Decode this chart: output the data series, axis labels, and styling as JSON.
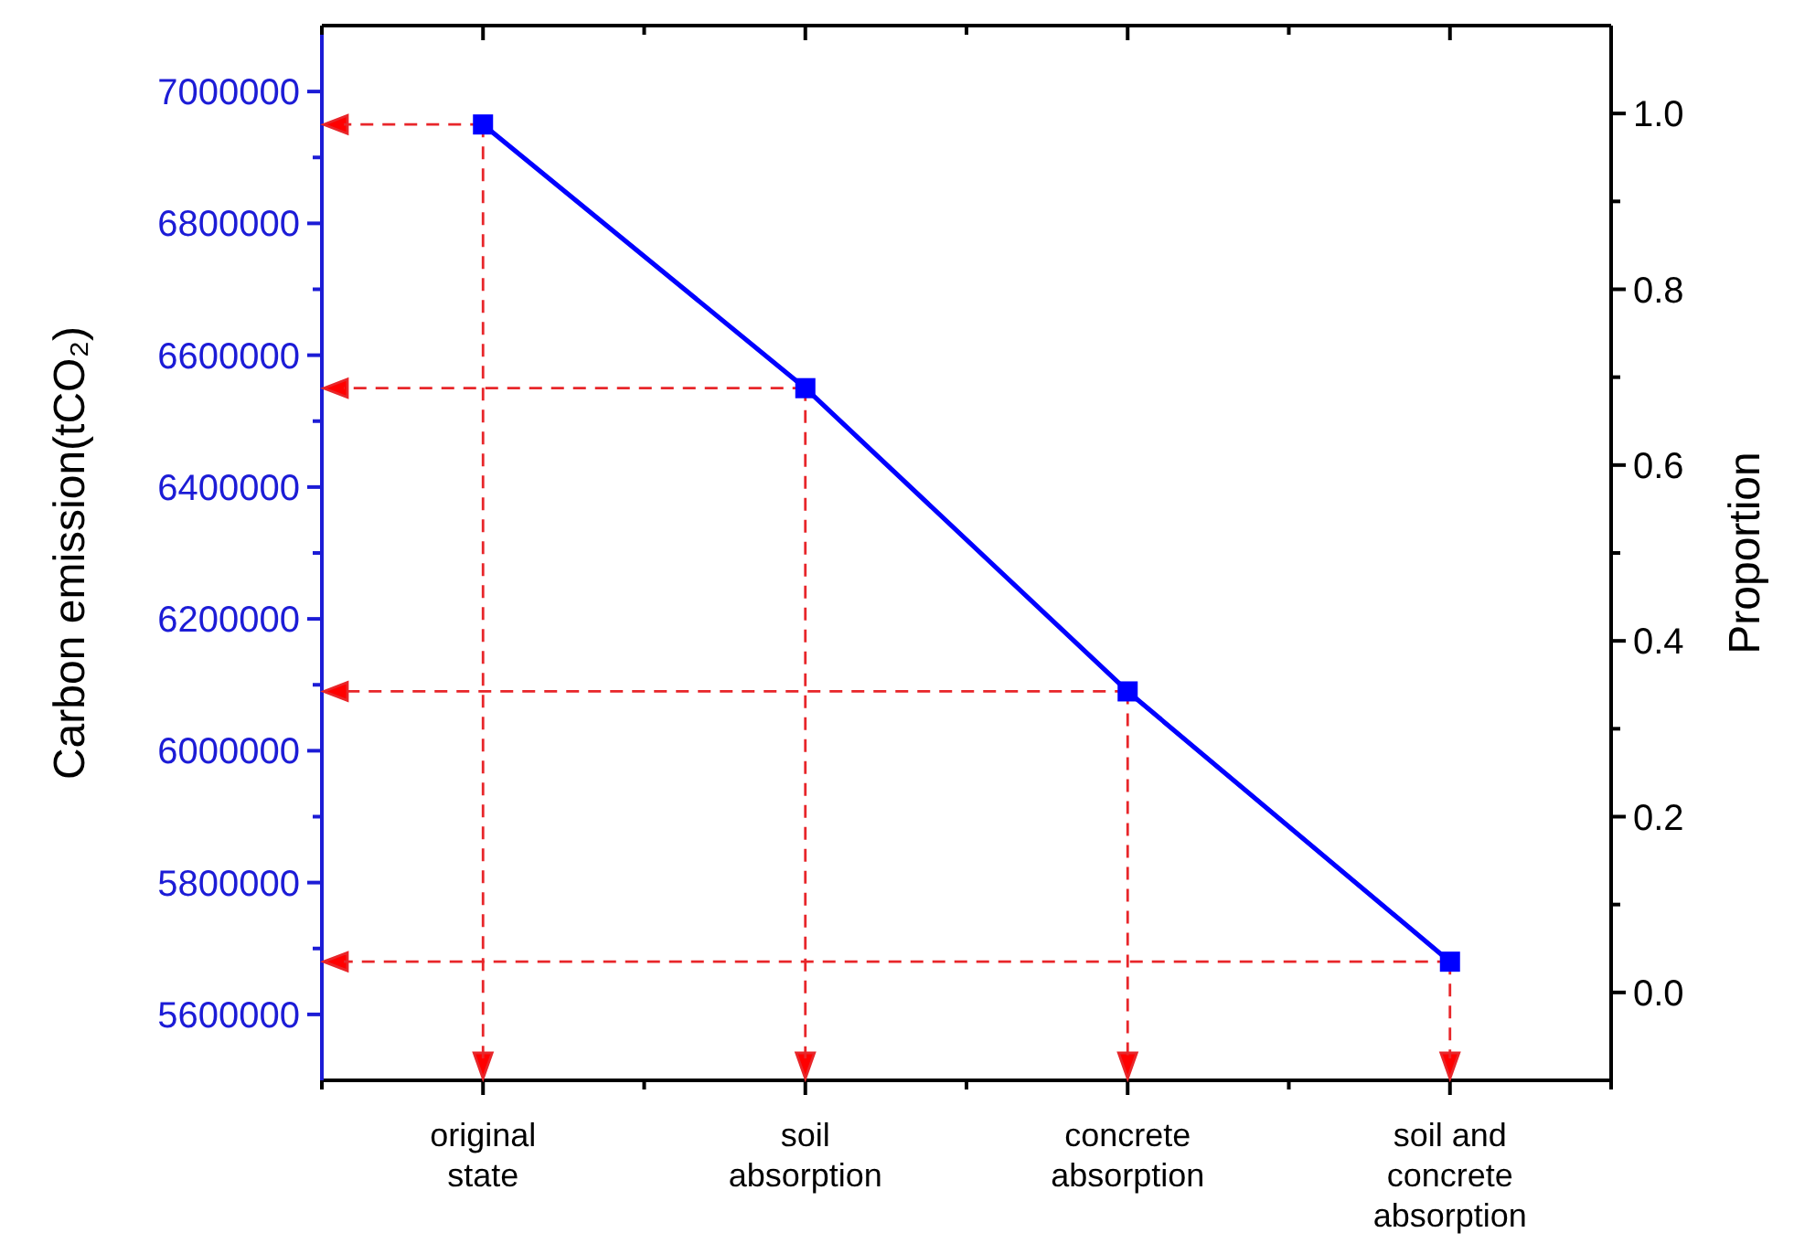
{
  "chart_data": {
    "type": "line",
    "ylabel": "Carbon emission(tCO₂)",
    "y2label": "Proportion",
    "categories": [
      "original state",
      "soil absorption",
      "concrete absorption",
      "soil and concrete absorption"
    ],
    "series": [
      {
        "color": "#0000ff",
        "values": [
          6950000,
          6550000,
          6090000,
          5680000
        ]
      }
    ],
    "ylim": [
      5500000,
      7100000
    ],
    "yticks": [
      5600000,
      5800000,
      6000000,
      6200000,
      6400000,
      6600000,
      6800000,
      7000000
    ],
    "y2lim": [
      -0.1,
      1.1
    ],
    "y2ticks": [
      {
        "value": 0,
        "label": "0.0"
      },
      {
        "value": 0.2,
        "label": "0.2"
      },
      {
        "value": 0.4,
        "label": "0.4"
      },
      {
        "value": 0.6,
        "label": "0.6"
      },
      {
        "value": 0.8,
        "label": "0.8"
      },
      {
        "value": 1,
        "label": "1.0"
      }
    ],
    "marker": "square",
    "line_style": "solid",
    "grid": false
  }
}
